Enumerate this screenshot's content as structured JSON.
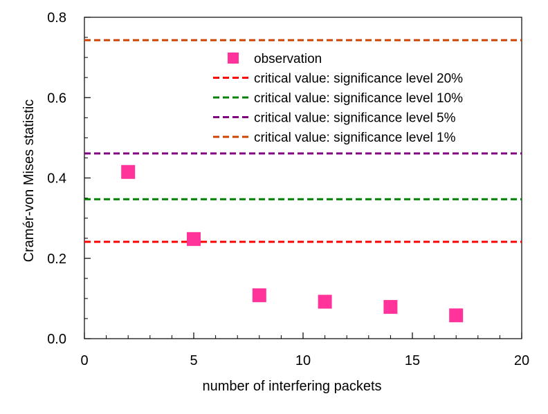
{
  "chart_data": {
    "type": "scatter",
    "title": "",
    "xlabel": "number of interfering packets",
    "ylabel": "Cramér-von Mises statistic",
    "xlim": [
      0,
      20
    ],
    "ylim": [
      0,
      0.8
    ],
    "x_ticks": [
      0,
      5,
      10,
      15,
      20
    ],
    "x_tick_labels": [
      "0",
      "5",
      "10",
      "15",
      "20"
    ],
    "y_ticks": [
      0,
      0.2,
      0.4,
      0.6,
      0.8
    ],
    "y_tick_labels": [
      "0.0",
      "0.2",
      "0.4",
      "0.6",
      "0.8"
    ],
    "grid": false,
    "legend_position": "top-center",
    "series": [
      {
        "name": "observation",
        "kind": "markers",
        "marker": "square",
        "color": "#ff3399",
        "points": [
          {
            "x": 2,
            "y": 0.415
          },
          {
            "x": 5,
            "y": 0.248
          },
          {
            "x": 8,
            "y": 0.108
          },
          {
            "x": 11,
            "y": 0.092
          },
          {
            "x": 14,
            "y": 0.079
          },
          {
            "x": 17,
            "y": 0.058
          }
        ]
      },
      {
        "name": "critical value: significance level 20%",
        "kind": "hline",
        "style": "dashed",
        "color": "#ff0000",
        "y": 0.241
      },
      {
        "name": "critical value: significance level 10%",
        "kind": "hline",
        "style": "dashed",
        "color": "#008000",
        "y": 0.347
      },
      {
        "name": "critical value: significance level 5%",
        "kind": "hline",
        "style": "dashed",
        "color": "#800080",
        "y": 0.461
      },
      {
        "name": "critical value: significance level 1%",
        "kind": "hline",
        "style": "dashed",
        "color": "#cc4400",
        "y": 0.743
      }
    ]
  }
}
